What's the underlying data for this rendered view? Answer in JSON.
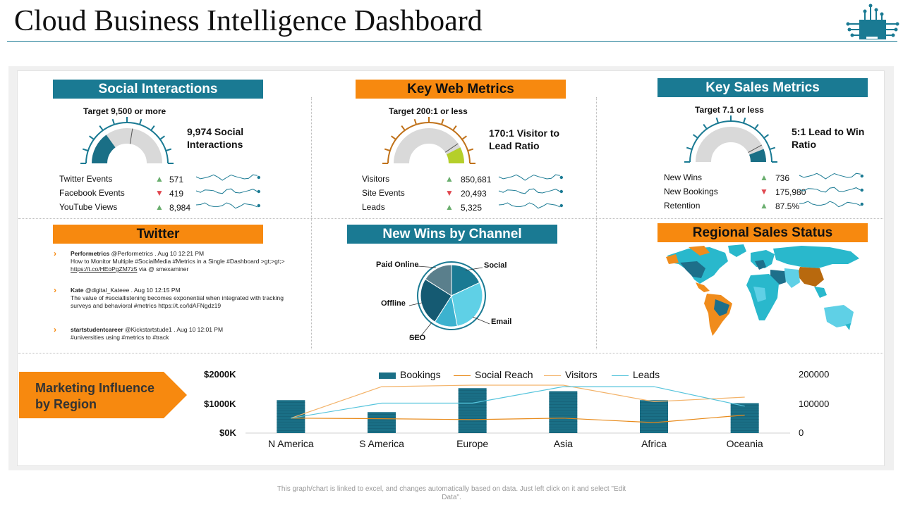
{
  "page": {
    "title": "Cloud Business Intelligence Dashboard",
    "footer": "This graph/chart is linked to excel, and changes automatically based on data. Just left click on it and select \"Edit Data\"."
  },
  "colors": {
    "teal": "#1a7a93",
    "orange": "#f7890f",
    "up": "#6aae6e",
    "down": "#e0474f"
  },
  "social": {
    "header": "Social Interactions",
    "target": "Target 9,500 or more",
    "gauge_text": "9,974 Social Interactions",
    "gauge_fraction": 0.3,
    "metrics": [
      {
        "label": "Twitter Events",
        "trend": "up",
        "value": "571"
      },
      {
        "label": "Facebook Events",
        "trend": "down",
        "value": "419"
      },
      {
        "label": "YouTube Views",
        "trend": "up",
        "value": "8,984"
      }
    ]
  },
  "web": {
    "header": "Key Web Metrics",
    "target": "Target 200:1 or less",
    "gauge_text": "170:1 Visitor to Lead Ratio",
    "gauge_fraction": 0.85,
    "metrics": [
      {
        "label": "Visitors",
        "trend": "up",
        "value": "850,681"
      },
      {
        "label": "Site Events",
        "trend": "down",
        "value": "20,493"
      },
      {
        "label": "Leads",
        "trend": "up",
        "value": "5,325"
      }
    ]
  },
  "sales": {
    "header": "Key Sales Metrics",
    "target": "Target 7.1 or less",
    "gauge_text": "5:1 Lead to Win Ratio",
    "gauge_fraction": 0.88,
    "metrics": [
      {
        "label": "New Wins",
        "trend": "up",
        "value": "736"
      },
      {
        "label": "New Bookings",
        "trend": "down",
        "value": "175,980"
      },
      {
        "label": "Retention",
        "trend": "up",
        "value": "87.5%"
      }
    ]
  },
  "twitter": {
    "header": "Twitter",
    "tweets": [
      {
        "user": "Performetrics",
        "meta": "@Performetrics . Aug 10 12:21 PM",
        "body": "How to Monitor Multiple #SocialMedia #Metrics in a Single #Dashboard >gt;>gt;>",
        "link": "https://t.co/HEoPgZM7z5",
        "tail": "via @ smexaminer"
      },
      {
        "user": "Kate",
        "meta": "@digital_Kateee . Aug 10 12:15 PM",
        "body": "The  value of #sociallistening becomes exponential when integrated with tracking surveys and behavioral #metrics https://t.co/IdAFNgdz19",
        "link": "",
        "tail": ""
      },
      {
        "user": "startstudentcareer",
        "meta": "@Kickstartstude1 . Aug 10 12:01 PM",
        "body": "#universities using #metrics to #track",
        "link": "",
        "tail": ""
      }
    ]
  },
  "channel": {
    "header": "New Wins by Channel",
    "slices": [
      {
        "label": "Social",
        "value": 18,
        "color": "#1a7a93"
      },
      {
        "label": "Email",
        "value": 29,
        "color": "#5fd0e6"
      },
      {
        "label": "SEO",
        "value": 12,
        "color": "#3cb2cf"
      },
      {
        "label": "Offline",
        "value": 25,
        "color": "#155a72"
      },
      {
        "label": "Paid Online",
        "value": 16,
        "color": "#5a7f8c"
      }
    ]
  },
  "regional": {
    "header": "Regional Sales Status"
  },
  "marketing": {
    "label_line1": "Marketing Influence",
    "label_line2": "by Region"
  },
  "chart_data": {
    "type": "bar",
    "categories": [
      "N America",
      "S America",
      "Europe",
      "Asia",
      "Africa",
      "Oceania"
    ],
    "left_axis_ticks": [
      "$2000K",
      "$1000K",
      "$0K"
    ],
    "right_axis_ticks": [
      "200000",
      "100000",
      "0"
    ],
    "left_ylim": [
      0,
      2000
    ],
    "right_ylim": [
      0,
      200000
    ],
    "legend": [
      "Bookings",
      "Social Reach",
      "Visitors",
      "Leads"
    ],
    "series": [
      {
        "name": "Bookings",
        "kind": "bar",
        "axis": "left",
        "color": "#1a6f86",
        "values": [
          1100,
          700,
          1500,
          1400,
          1100,
          1000
        ]
      },
      {
        "name": "Social Reach",
        "kind": "line",
        "axis": "right",
        "color": "#e88a1a",
        "values": [
          50000,
          48000,
          45000,
          50000,
          35000,
          60000
        ]
      },
      {
        "name": "Visitors",
        "kind": "line",
        "axis": "right",
        "color": "#f3b36a",
        "values": [
          50000,
          155000,
          160000,
          160000,
          105000,
          120000
        ]
      },
      {
        "name": "Leads",
        "kind": "line",
        "axis": "right",
        "color": "#56c4dc",
        "values": [
          50000,
          100000,
          100000,
          155000,
          155000,
          90000
        ]
      }
    ]
  }
}
